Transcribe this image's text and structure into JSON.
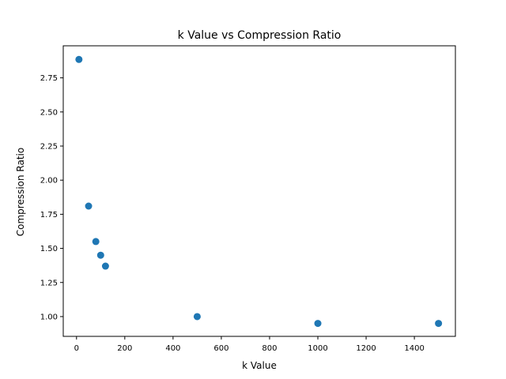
{
  "chart_data": {
    "type": "scatter",
    "title": "k Value vs Compression Ratio",
    "xlabel": "k Value",
    "ylabel": "Compression Ratio",
    "xlim": [
      -55,
      1570
    ],
    "ylim": [
      0.855,
      2.985
    ],
    "xticks": [
      0,
      200,
      400,
      600,
      800,
      1000,
      1200,
      1400
    ],
    "yticks": [
      1.0,
      1.25,
      1.5,
      1.75,
      2.0,
      2.25,
      2.5,
      2.75
    ],
    "ytick_labels": [
      "1.00",
      "1.25",
      "1.50",
      "1.75",
      "2.00",
      "2.25",
      "2.50",
      "2.75"
    ],
    "grid": false,
    "marker_color": "#1f77b4",
    "points": [
      {
        "x": 10,
        "y": 2.885
      },
      {
        "x": 50,
        "y": 1.81
      },
      {
        "x": 80,
        "y": 1.55
      },
      {
        "x": 100,
        "y": 1.45
      },
      {
        "x": 120,
        "y": 1.37
      },
      {
        "x": 500,
        "y": 1.0
      },
      {
        "x": 1000,
        "y": 0.95
      },
      {
        "x": 1500,
        "y": 0.95
      }
    ]
  }
}
